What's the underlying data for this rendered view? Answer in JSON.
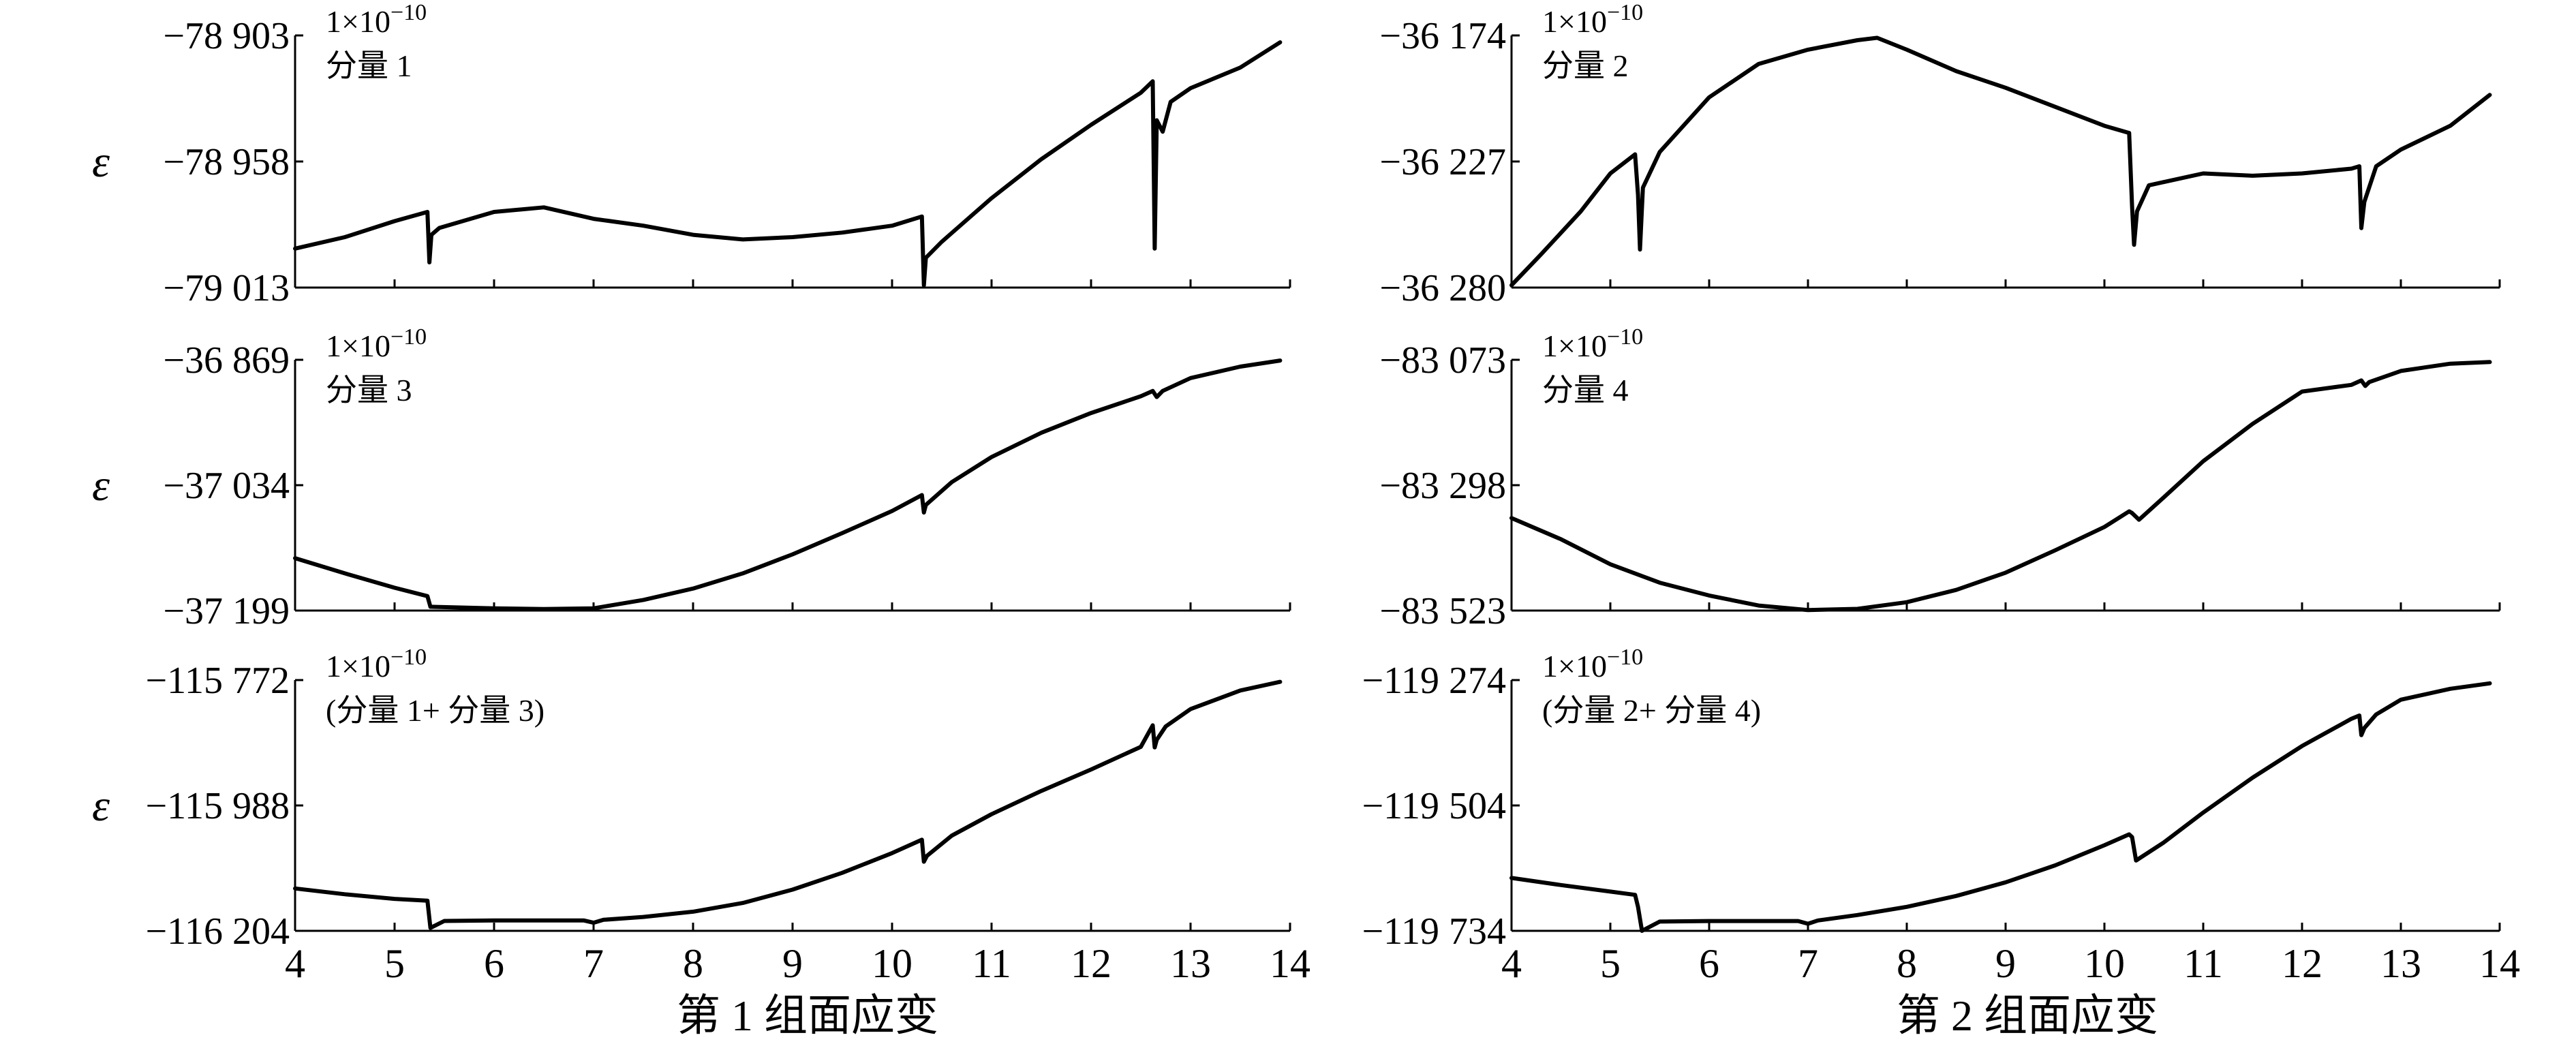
{
  "figure": {
    "x_title_left": "第 1 组面应变",
    "x_title_right": "第 2 组面应变",
    "y_symbol": "ε"
  },
  "chart_data": [
    {
      "type": "line",
      "scale_label": "1×10−10",
      "component_label": "分量 1",
      "y_symbol": "ε",
      "show_x_tick_labels": false,
      "xlim": [
        4,
        14
      ],
      "x_ticks": [
        4,
        5,
        6,
        7,
        8,
        9,
        10,
        11,
        12,
        13,
        14
      ],
      "x_tick_labels": [
        "4",
        "5",
        "6",
        "7",
        "8",
        "9",
        "10",
        "11",
        "12",
        "13",
        "14"
      ],
      "ylim": [
        -79013,
        -78903
      ],
      "y_ticks": [
        -78903,
        -78958,
        -79013
      ],
      "y_tick_labels": [
        "−78 903",
        "−78 958",
        "−79 013"
      ],
      "series": [
        {
          "x": [
            4.0,
            4.5,
            5.0,
            5.33,
            5.35,
            5.37,
            5.45,
            6.0,
            6.5,
            7.0,
            7.5,
            8.0,
            8.5,
            9.0,
            9.5,
            10.0,
            10.3,
            10.32,
            10.34,
            10.5,
            11.0,
            11.5,
            12.0,
            12.5,
            12.62,
            12.64,
            12.66,
            12.72,
            12.8,
            13.0,
            13.5,
            13.9
          ],
          "y": [
            -78996,
            -78991,
            -78984,
            -78980,
            -79002,
            -78990,
            -78987,
            -78980,
            -78978,
            -78983,
            -78986,
            -78990,
            -78992,
            -78991,
            -78989,
            -78986,
            -78982,
            -79012,
            -79000,
            -78993,
            -78974,
            -78957,
            -78942,
            -78928,
            -78923,
            -78996,
            -78940,
            -78945,
            -78932,
            -78926,
            -78917,
            -78906
          ]
        }
      ]
    },
    {
      "type": "line",
      "scale_label": "1×10−10",
      "component_label": "分量 2",
      "y_symbol": "",
      "show_x_tick_labels": false,
      "xlim": [
        4,
        14
      ],
      "x_ticks": [
        4,
        5,
        6,
        7,
        8,
        9,
        10,
        11,
        12,
        13,
        14
      ],
      "x_tick_labels": [
        "4",
        "5",
        "6",
        "7",
        "8",
        "9",
        "10",
        "11",
        "12",
        "13",
        "14"
      ],
      "ylim": [
        -36280,
        -36174
      ],
      "y_ticks": [
        -36174,
        -36227,
        -36280
      ],
      "y_tick_labels": [
        "−36 174",
        "−36 227",
        "−36 280"
      ],
      "series": [
        {
          "x": [
            4.0,
            4.3,
            4.7,
            5.0,
            5.25,
            5.28,
            5.3,
            5.33,
            5.5,
            6.0,
            6.5,
            7.0,
            7.5,
            7.7,
            8.0,
            8.5,
            9.0,
            9.5,
            10.0,
            10.25,
            10.28,
            10.3,
            10.33,
            10.45,
            11.0,
            11.5,
            12.0,
            12.5,
            12.58,
            12.6,
            12.63,
            12.75,
            13.0,
            13.5,
            13.9
          ],
          "y": [
            -36279,
            -36266,
            -36248,
            -36232,
            -36224,
            -36241,
            -36264,
            -36238,
            -36223,
            -36200,
            -36186,
            -36180,
            -36176,
            -36175,
            -36180,
            -36189,
            -36196,
            -36204,
            -36212,
            -36215,
            -36246,
            -36262,
            -36248,
            -36237,
            -36232,
            -36233,
            -36232,
            -36230,
            -36229,
            -36255,
            -36244,
            -36229,
            -36222,
            -36212,
            -36199
          ]
        }
      ]
    },
    {
      "type": "line",
      "scale_label": "1×10−10",
      "component_label": "分量 3",
      "y_symbol": "ε",
      "show_x_tick_labels": false,
      "xlim": [
        4,
        14
      ],
      "x_ticks": [
        4,
        5,
        6,
        7,
        8,
        9,
        10,
        11,
        12,
        13,
        14
      ],
      "x_tick_labels": [
        "4",
        "5",
        "6",
        "7",
        "8",
        "9",
        "10",
        "11",
        "12",
        "13",
        "14"
      ],
      "ylim": [
        -37199,
        -36869
      ],
      "y_ticks": [
        -36869,
        -37034,
        -37199
      ],
      "y_tick_labels": [
        "−36 869",
        "−37 034",
        "−37 199"
      ],
      "series": [
        {
          "x": [
            4.0,
            4.5,
            5.0,
            5.33,
            5.36,
            6.0,
            6.5,
            7.0,
            7.5,
            8.0,
            8.5,
            9.0,
            9.5,
            10.0,
            10.3,
            10.32,
            10.34,
            10.6,
            11.0,
            11.5,
            12.0,
            12.5,
            12.62,
            12.66,
            12.72,
            13.0,
            13.5,
            13.9
          ],
          "y": [
            -37130,
            -37150,
            -37169,
            -37180,
            -37194,
            -37196,
            -37197,
            -37196,
            -37185,
            -37170,
            -37150,
            -37125,
            -37097,
            -37068,
            -37047,
            -37070,
            -37060,
            -37030,
            -36997,
            -36965,
            -36939,
            -36917,
            -36910,
            -36918,
            -36910,
            -36893,
            -36878,
            -36870
          ]
        }
      ]
    },
    {
      "type": "line",
      "scale_label": "1×10−10",
      "component_label": "分量 4",
      "y_symbol": "",
      "show_x_tick_labels": false,
      "xlim": [
        4,
        14
      ],
      "x_ticks": [
        4,
        5,
        6,
        7,
        8,
        9,
        10,
        11,
        12,
        13,
        14
      ],
      "x_tick_labels": [
        "4",
        "5",
        "6",
        "7",
        "8",
        "9",
        "10",
        "11",
        "12",
        "13",
        "14"
      ],
      "ylim": [
        -83523,
        -83073
      ],
      "y_ticks": [
        -83073,
        -83298,
        -83523
      ],
      "y_tick_labels": [
        "−83 073",
        "−83 298",
        "−83 523"
      ],
      "series": [
        {
          "x": [
            4.0,
            4.5,
            5.0,
            5.5,
            6.0,
            6.5,
            7.0,
            7.5,
            8.0,
            8.5,
            9.0,
            9.5,
            10.0,
            10.25,
            10.28,
            10.35,
            10.6,
            11.0,
            11.5,
            12.0,
            12.5,
            12.6,
            12.64,
            12.68,
            13.0,
            13.5,
            13.9
          ],
          "y": [
            -83357,
            -83395,
            -83440,
            -83473,
            -83496,
            -83514,
            -83522,
            -83520,
            -83508,
            -83486,
            -83455,
            -83415,
            -83373,
            -83345,
            -83348,
            -83360,
            -83320,
            -83255,
            -83188,
            -83130,
            -83118,
            -83110,
            -83120,
            -83113,
            -83093,
            -83080,
            -83077
          ]
        }
      ]
    },
    {
      "type": "line",
      "scale_label": "1×10−10",
      "component_label": "(分量 1+ 分量 3)",
      "y_symbol": "ε",
      "show_x_tick_labels": true,
      "xlim": [
        4,
        14
      ],
      "x_ticks": [
        4,
        5,
        6,
        7,
        8,
        9,
        10,
        11,
        12,
        13,
        14
      ],
      "x_tick_labels": [
        "4",
        "5",
        "6",
        "7",
        "8",
        "9",
        "10",
        "11",
        "12",
        "13",
        "14"
      ],
      "ylim": [
        -116204,
        -115772
      ],
      "y_ticks": [
        -115772,
        -115988,
        -116204
      ],
      "y_tick_labels": [
        "−115 772",
        "−115 988",
        "−116 204"
      ],
      "series": [
        {
          "x": [
            4.0,
            4.5,
            5.0,
            5.33,
            5.36,
            5.5,
            6.0,
            6.5,
            6.9,
            7.0,
            7.1,
            7.5,
            8.0,
            8.5,
            9.0,
            9.5,
            10.0,
            10.3,
            10.32,
            10.35,
            10.6,
            11.0,
            11.5,
            12.0,
            12.5,
            12.62,
            12.64,
            12.66,
            12.75,
            13.0,
            13.5,
            13.9
          ],
          "y": [
            -116131,
            -116141,
            -116149,
            -116152,
            -116199,
            -116187,
            -116186,
            -116186,
            -116186,
            -116190,
            -116185,
            -116180,
            -116171,
            -116156,
            -116133,
            -116104,
            -116070,
            -116047,
            -116085,
            -116075,
            -116040,
            -116003,
            -115963,
            -115926,
            -115887,
            -115850,
            -115888,
            -115875,
            -115852,
            -115822,
            -115790,
            -115775
          ]
        }
      ]
    },
    {
      "type": "line",
      "scale_label": "1×10−10",
      "component_label": "(分量 2+ 分量 4)",
      "y_symbol": "",
      "show_x_tick_labels": true,
      "xlim": [
        4,
        14
      ],
      "x_ticks": [
        4,
        5,
        6,
        7,
        8,
        9,
        10,
        11,
        12,
        13,
        14
      ],
      "x_tick_labels": [
        "4",
        "5",
        "6",
        "7",
        "8",
        "9",
        "10",
        "11",
        "12",
        "13",
        "14"
      ],
      "ylim": [
        -119734,
        -119274
      ],
      "y_ticks": [
        -119274,
        -119504,
        -119734
      ],
      "y_tick_labels": [
        "−119 274",
        "−119 504",
        "−119 734"
      ],
      "series": [
        {
          "x": [
            4.0,
            4.5,
            5.0,
            5.25,
            5.28,
            5.32,
            5.5,
            6.0,
            6.5,
            6.9,
            7.0,
            7.1,
            7.5,
            8.0,
            8.5,
            9.0,
            9.5,
            10.0,
            10.25,
            10.28,
            10.32,
            10.6,
            11.0,
            11.5,
            12.0,
            12.5,
            12.58,
            12.6,
            12.63,
            12.75,
            13.0,
            13.5,
            13.9
          ],
          "y": [
            -119637,
            -119650,
            -119662,
            -119668,
            -119690,
            -119734,
            -119717,
            -119716,
            -119716,
            -119716,
            -119721,
            -119715,
            -119705,
            -119690,
            -119670,
            -119645,
            -119614,
            -119577,
            -119557,
            -119562,
            -119605,
            -119572,
            -119517,
            -119453,
            -119395,
            -119345,
            -119339,
            -119375,
            -119362,
            -119337,
            -119310,
            -119290,
            -119280
          ]
        }
      ]
    }
  ]
}
